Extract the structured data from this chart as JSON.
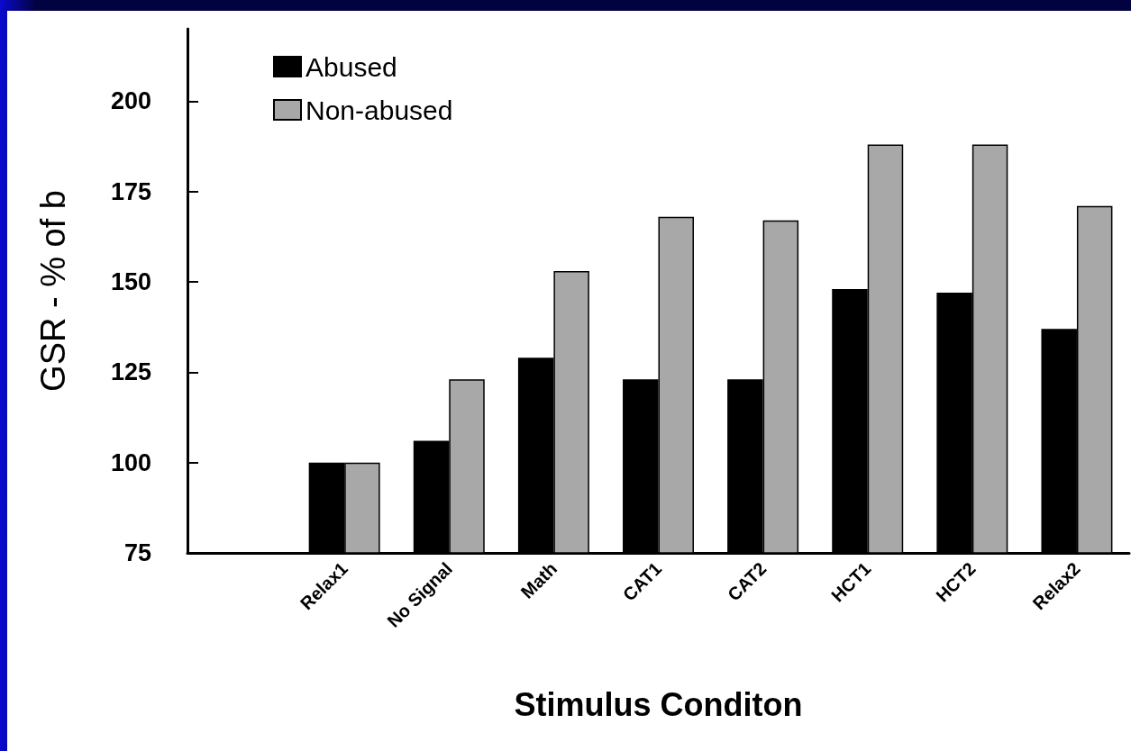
{
  "chart_data": {
    "type": "bar",
    "xlabel": "Stimulus Conditon",
    "ylabel": "GSR - % of b",
    "categories": [
      null,
      "Relax1",
      "No Signal",
      "Math",
      "CAT1",
      "CAT2",
      "HCT1",
      "HCT2",
      "Relax2"
    ],
    "series": [
      {
        "name": "Abused",
        "color": "#000000",
        "values": [
          null,
          100,
          106,
          129,
          123,
          123,
          148,
          147,
          137
        ]
      },
      {
        "name": "Non-abused",
        "color": "#a8a8a8",
        "values": [
          null,
          100,
          123,
          153,
          168,
          167,
          188,
          188,
          171
        ]
      }
    ],
    "ylim": [
      75,
      220
    ],
    "yticks": [
      75,
      100,
      125,
      150,
      175,
      200
    ],
    "grid": false,
    "legend": "top left"
  }
}
